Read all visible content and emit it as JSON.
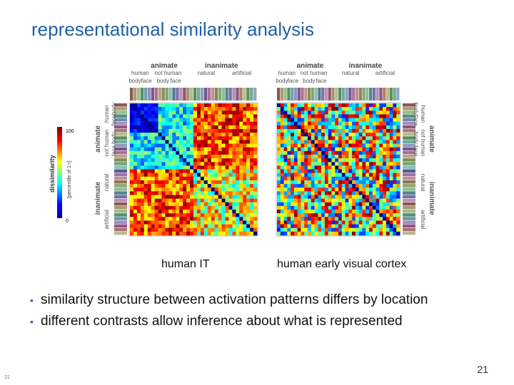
{
  "title": "representational similarity analysis",
  "figure": {
    "left": {
      "caption": "human IT",
      "header": [
        "animate",
        "inanimate"
      ],
      "subheader": [
        "human",
        "not human",
        "natural",
        "artificial"
      ],
      "subsub": [
        "body",
        "face",
        "body",
        "face"
      ]
    },
    "right": {
      "caption": "human early visual cortex",
      "header": [
        "animate",
        "inanimate"
      ],
      "subheader": [
        "human",
        "not human",
        "natural",
        "artificial"
      ],
      "subsub": [
        "body",
        "face",
        "body",
        "face"
      ]
    },
    "colorbar": {
      "label": "dissimilarity",
      "sublabel": "[percentile of 1-r]",
      "max": "100",
      "min": "0"
    }
  },
  "bullets": [
    "similarity structure between activation patterns differs by location",
    "different contrasts allow inference about what is represented"
  ],
  "page_number": "21",
  "footer_number": "21"
}
